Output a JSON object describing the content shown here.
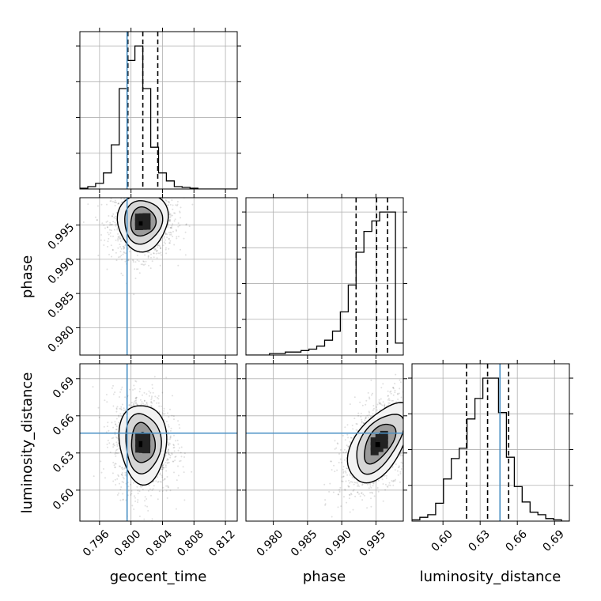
{
  "chart_data": {
    "type": "corner",
    "parameters": [
      "geocent_time",
      "phase",
      "luminosity_distance"
    ],
    "truths": {
      "geocent_time": 0.7995,
      "luminosity_distance": 0.646
    },
    "truth_color": "#4a90c4",
    "quantiles": {
      "geocent_time": [
        0.7996,
        0.8015,
        0.8034
      ],
      "phase": [
        0.9921,
        0.9951,
        0.9967
      ],
      "luminosity_distance": [
        0.619,
        0.636,
        0.653
      ]
    },
    "ranges": {
      "geocent_time": [
        0.7935,
        0.8135
      ],
      "phase": [
        0.976,
        0.999
      ],
      "luminosity_distance": [
        0.575,
        0.702
      ]
    },
    "ticks": {
      "geocent_time": [
        "0.796",
        "0.800",
        "0.804",
        "0.808",
        "0.812"
      ],
      "phase": [
        "0.980",
        "0.985",
        "0.990",
        "0.995"
      ],
      "luminosity_distance": [
        "0.60",
        "0.63",
        "0.66",
        "0.69"
      ]
    },
    "histograms": {
      "geocent_time": {
        "bin_start": 0.7935,
        "bin_width": 0.001,
        "counts": [
          1,
          3,
          7,
          20,
          55,
          125,
          160,
          178,
          125,
          52,
          20,
          10,
          3,
          2,
          1,
          0,
          0,
          0,
          0,
          0
        ]
      },
      "phase": {
        "bin_start": 0.976,
        "bin_width": 0.00115,
        "counts": [
          0,
          0,
          0,
          1,
          1,
          2,
          2,
          3,
          4,
          6,
          10,
          16,
          29,
          47,
          69,
          83,
          90,
          96,
          96,
          8
        ]
      },
      "luminosity_distance": {
        "bin_start": 0.575,
        "bin_width": 0.00635,
        "counts": [
          1,
          3,
          5,
          14,
          33,
          49,
          57,
          80,
          96,
          112,
          112,
          85,
          50,
          27,
          15,
          7,
          5,
          2,
          1,
          0
        ]
      }
    },
    "joint": {
      "phase_vs_geocent_time": {
        "center": [
          0.8015,
          0.9955
        ],
        "sd": [
          0.0016,
          0.0021
        ],
        "rho": 0.05
      },
      "luminosity_distance_vs_geocent_time": {
        "center": [
          0.8015,
          0.638
        ],
        "sd": [
          0.0015,
          0.016
        ],
        "rho": -0.05
      },
      "luminosity_distance_vs_phase": {
        "center": [
          0.9955,
          0.638
        ],
        "sd": [
          0.0023,
          0.016
        ],
        "rho": 0.55
      }
    }
  }
}
